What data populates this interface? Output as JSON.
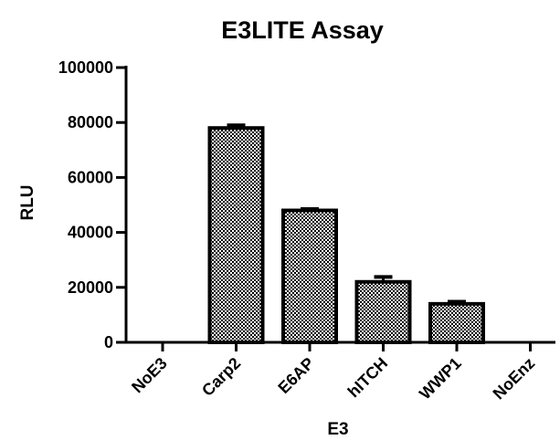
{
  "chart_data": {
    "type": "bar",
    "title": "E3LITE Assay",
    "xlabel": "E3",
    "ylabel": "RLU",
    "categories": [
      "NoE3",
      "Carp2",
      "E6AP",
      "hITCH",
      "WWP1",
      "NoEnz"
    ],
    "values": [
      0,
      78000,
      48000,
      22000,
      14000,
      0
    ],
    "errors": [
      0,
      1000,
      500,
      1800,
      800,
      0
    ],
    "ylim": [
      0,
      100000
    ],
    "yticks": [
      0,
      20000,
      40000,
      60000,
      80000,
      100000
    ],
    "ytick_labels": [
      "0",
      "20000",
      "40000",
      "60000",
      "80000",
      "100000"
    ],
    "grid": false,
    "bar_pattern": "checkerboard",
    "colors": {
      "bar_fill_a": "#ffffff",
      "bar_fill_b": "#000000",
      "edge": "#000000"
    }
  }
}
